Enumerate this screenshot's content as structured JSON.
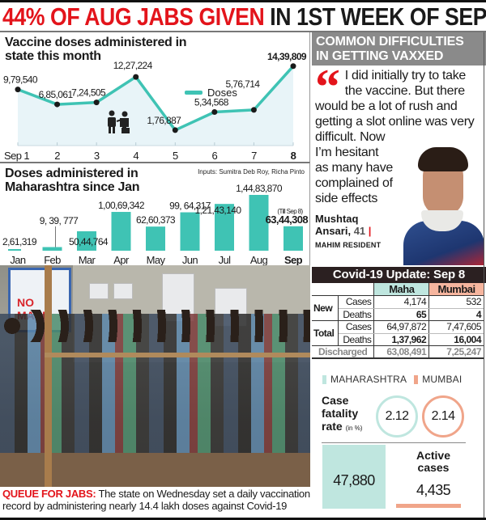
{
  "headline": {
    "red_part": "44% OF AUG JABS GIVEN",
    "black_part": "IN 1ST WEEK OF SEP"
  },
  "line_panel": {
    "title_line1": "Vaccine doses administered in",
    "title_line2": "state this month",
    "legend_label": "Doses",
    "icon": "vaccination-people-icon"
  },
  "bar_panel": {
    "title_line1": "Doses administered in",
    "title_line2": "Maharashtra since Jan",
    "inputs_credit": "Inputs: Sumitra Deb Roy, Richa Pinto",
    "till_note": "(Till Sep 8)"
  },
  "chart_data": [
    {
      "type": "line",
      "title": "Vaccine doses administered in state this month",
      "categories": [
        "Sep 1",
        "2",
        "3",
        "4",
        "5",
        "6",
        "7",
        "8"
      ],
      "series": [
        {
          "name": "Doses",
          "values": [
            979540,
            685061,
            724505,
            1227224,
            176887,
            534568,
            576714,
            1439809
          ]
        }
      ],
      "labels": [
        "9,79,540",
        "6,85,061",
        "7,24,505",
        "12,27,224",
        "1,76,887",
        "5,34,568",
        "5,76,714",
        "14,39,809"
      ],
      "xlabel": "",
      "ylabel": "",
      "legend_position": "top-right",
      "grid": false,
      "color": "#3fc3b4"
    },
    {
      "type": "bar",
      "title": "Doses administered in Maharashtra since Jan",
      "categories": [
        "Jan",
        "Feb",
        "Mar",
        "Apr",
        "May",
        "Jun",
        "Jul",
        "Aug",
        "Sep"
      ],
      "values": [
        261319,
        939777,
        5044764,
        10069342,
        6260373,
        9964317,
        12143140,
        14483870,
        6344308
      ],
      "labels": [
        "2,61,319",
        "9, 39, 777",
        "50,44,764",
        "1,00,69,342",
        "62,60,373",
        "99, 64,317",
        "1,21,43,140",
        "1,44,83,870",
        "63,44,308"
      ],
      "annotations": [
        "Sep: (Till Sep 8)"
      ],
      "xlabel": "",
      "ylabel": "",
      "grid": false,
      "color": "#3fc3b4"
    },
    {
      "type": "table",
      "title": "Covid-19 Update: Sep 8",
      "columns": [
        "",
        "",
        "Maha",
        "Mumbai"
      ],
      "rows": [
        [
          "New",
          "Cases",
          "4,174",
          "532"
        ],
        [
          "New",
          "Deaths",
          "65",
          "4"
        ],
        [
          "Total",
          "Cases",
          "64,97,872",
          "7,47,605"
        ],
        [
          "Total",
          "Deaths",
          "1,37,962",
          "16,004"
        ],
        [
          "Discharged",
          "",
          "63,08,491",
          "7,25,247"
        ]
      ]
    }
  ],
  "photo": {
    "sign_text": "NO MASK",
    "caption_lead": "QUEUE FOR JABS:",
    "caption_body": " The state on Wednesday set a daily vaccination record by administering nearly 14.4 lakh doses against Covid-19"
  },
  "sidebar": {
    "box_title_line1": "COMMON DIFFICULTIES",
    "box_title_line2": "IN GETTING VAXXED",
    "quote_mark": "“",
    "quote_text": "I did initially try to take the vaccine. But there would be a lot of rush and getting a slot online was very difficult. Now I’m hesitant as many have complained of side effects",
    "quote_line1": "I did initially try to take",
    "quote_line2": "the vaccine. But there",
    "quote_line3": "would be a lot of rush and",
    "quote_line4": "getting a slot online was very",
    "quote_line5": "difficult. Now",
    "quote_line6": "I’m hesitant",
    "quote_line7": "as many have",
    "quote_line8": "complained of",
    "quote_line9": "side effects",
    "name_line1": "Mushtaq",
    "name_line2": "Ansari,",
    "age": "41",
    "sep": "|",
    "residence": "MAHIM RESIDENT"
  },
  "covid": {
    "header": "Covid-19 Update: Sep 8",
    "col_maha": "Maha",
    "col_mumbai": "Mumbai",
    "new_label": "New",
    "total_label": "Total",
    "cases_label": "Cases",
    "deaths_label": "Deaths",
    "discharged_label": "Discharged",
    "new_cases_maha": "4,174",
    "new_cases_mumbai": "532",
    "new_deaths_maha": "65",
    "new_deaths_mumbai": "4",
    "total_cases_maha": "64,97,872",
    "total_cases_mumbai": "7,47,605",
    "total_deaths_maha": "1,37,962",
    "total_deaths_mumbai": "16,004",
    "discharged_maha": "63,08,491",
    "discharged_mumbai": "7,25,247"
  },
  "stats": {
    "legend_maha": "MAHARASHTRA",
    "legend_mumbai": "MUMBAI",
    "cfr_line1": "Case",
    "cfr_line2": "fatality",
    "cfr_line3": "rate",
    "cfr_unit": "(in %)",
    "cfr_maha": "2.12",
    "cfr_mumbai": "2.14",
    "active_title_line1": "Active",
    "active_title_line2": "cases",
    "active_maha": "47,880",
    "active_mumbai": "4,435"
  },
  "colors": {
    "headline_red": "#e3141b",
    "teal": "#3fc3b4",
    "maha_light": "#bfe6df",
    "mumbai_salmon": "#f0a58a",
    "header_dark": "#2b2021",
    "box_grey": "#8a8a8a"
  }
}
